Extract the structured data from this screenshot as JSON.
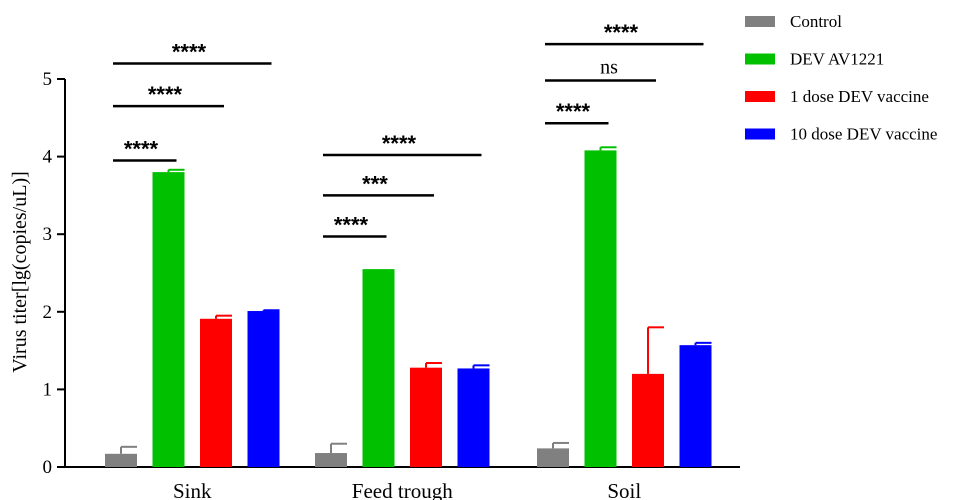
{
  "chart_data": {
    "type": "bar",
    "title": "",
    "xlabel": "",
    "ylabel": "Virus titer[lg(copies/uL)]",
    "ylim": [
      0,
      5
    ],
    "yticks": [
      "0",
      "1",
      "2",
      "3",
      "4",
      "5"
    ],
    "categories": [
      "Sink",
      "Feed trough",
      "Soil"
    ],
    "grid": false,
    "legend_position": "top-right",
    "series": [
      {
        "name": "Control",
        "color": "#808080",
        "values": [
          0.17,
          0.18,
          0.24
        ],
        "errors": [
          0.09,
          0.12,
          0.07
        ]
      },
      {
        "name": "DEV AV1221",
        "color": "#00c000",
        "values": [
          3.8,
          2.55,
          4.08
        ],
        "errors": [
          0.03,
          0.0,
          0.04
        ]
      },
      {
        "name": "1 dose DEV vaccine",
        "color": "#ff0000",
        "values": [
          1.91,
          1.28,
          1.2
        ],
        "errors": [
          0.04,
          0.06,
          0.6
        ]
      },
      {
        "name": "10 dose DEV vaccine",
        "color": "#0000ff",
        "values": [
          2.01,
          1.27,
          1.57
        ],
        "errors": [
          0.01,
          0.04,
          0.03
        ]
      }
    ],
    "significance": [
      {
        "category": "Sink",
        "compare": "DEV AV1221",
        "label": "****",
        "y": 3.95
      },
      {
        "category": "Sink",
        "compare": "1 dose DEV vaccine",
        "label": "****",
        "y": 4.65
      },
      {
        "category": "Sink",
        "compare": "10 dose DEV vaccine",
        "label": "****",
        "y": 5.2
      },
      {
        "category": "Feed trough",
        "compare": "DEV AV1221",
        "label": "****",
        "y": 2.97
      },
      {
        "category": "Feed trough",
        "compare": "1 dose DEV vaccine",
        "label": "***",
        "y": 3.5
      },
      {
        "category": "Feed trough",
        "compare": "10 dose DEV vaccine",
        "label": "****",
        "y": 4.02
      },
      {
        "category": "Soil",
        "compare": "DEV AV1221",
        "label": "****",
        "y": 4.43
      },
      {
        "category": "Soil",
        "compare": "1 dose DEV vaccine",
        "label": "ns",
        "y": 4.98
      },
      {
        "category": "Soil",
        "compare": "10 dose DEV vaccine",
        "label": "****",
        "y": 5.45
      }
    ]
  }
}
